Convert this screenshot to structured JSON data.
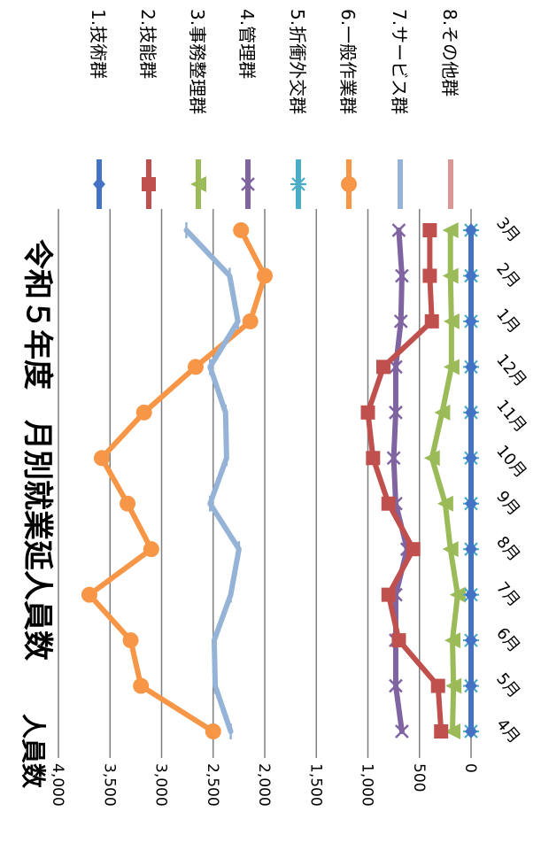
{
  "chart_data": {
    "type": "line",
    "title": "令和５年度　月別就業延人員数",
    "ylabel": "人員数",
    "xlabel": "",
    "ylim": [
      0,
      4000
    ],
    "yticks": [
      0,
      500,
      1000,
      1500,
      2000,
      2500,
      3000,
      3500,
      4000
    ],
    "ytick_labels": [
      "0",
      "500",
      "1,000",
      "1,500",
      "2,000",
      "2,500",
      "3,000",
      "3,500",
      "4,000"
    ],
    "categories": [
      "4月",
      "5月",
      "6月",
      "7月",
      "8月",
      "9月",
      "10月",
      "11月",
      "12月",
      "1月",
      "2月",
      "3月"
    ],
    "grid": true,
    "legend_position": "right",
    "series": [
      {
        "name": "1.技術群",
        "color": "#4472c4",
        "marker": "diamond",
        "values": [
          0,
          0,
          0,
          0,
          0,
          0,
          0,
          0,
          0,
          0,
          0,
          0
        ]
      },
      {
        "name": "2.技能群",
        "color": "#c0504d",
        "marker": "square",
        "values": [
          290,
          320,
          700,
          800,
          560,
          800,
          950,
          1000,
          850,
          380,
          400,
          400
        ]
      },
      {
        "name": "3.事務整理群",
        "color": "#9bbb59",
        "marker": "triangle",
        "values": [
          180,
          170,
          180,
          130,
          200,
          250,
          380,
          280,
          190,
          190,
          200,
          200
        ]
      },
      {
        "name": "4.管理群",
        "color": "#8064a2",
        "marker": "x",
        "values": [
          670,
          730,
          730,
          730,
          620,
          730,
          750,
          730,
          730,
          680,
          670,
          700
        ]
      },
      {
        "name": "5.折衝外交群",
        "color": "#4bacc6",
        "marker": "star",
        "values": [
          0,
          0,
          0,
          0,
          0,
          0,
          0,
          0,
          0,
          0,
          0,
          0
        ]
      },
      {
        "name": "6.一般作業群",
        "color": "#f79646",
        "marker": "circle",
        "values": [
          2500,
          3200,
          3300,
          3700,
          3100,
          3330,
          3580,
          3170,
          2670,
          2140,
          2000,
          2230
        ]
      },
      {
        "name": "7.サービス群",
        "color": "#95b3d7",
        "marker": "plus",
        "values": [
          2330,
          2480,
          2490,
          2330,
          2250,
          2530,
          2370,
          2380,
          2530,
          2260,
          2340,
          2760
        ]
      },
      {
        "name": "8.その他群",
        "color": "#d99694",
        "marker": "none",
        "values": [
          0,
          0,
          0,
          0,
          0,
          0,
          0,
          0,
          0,
          0,
          0,
          0
        ]
      }
    ]
  }
}
